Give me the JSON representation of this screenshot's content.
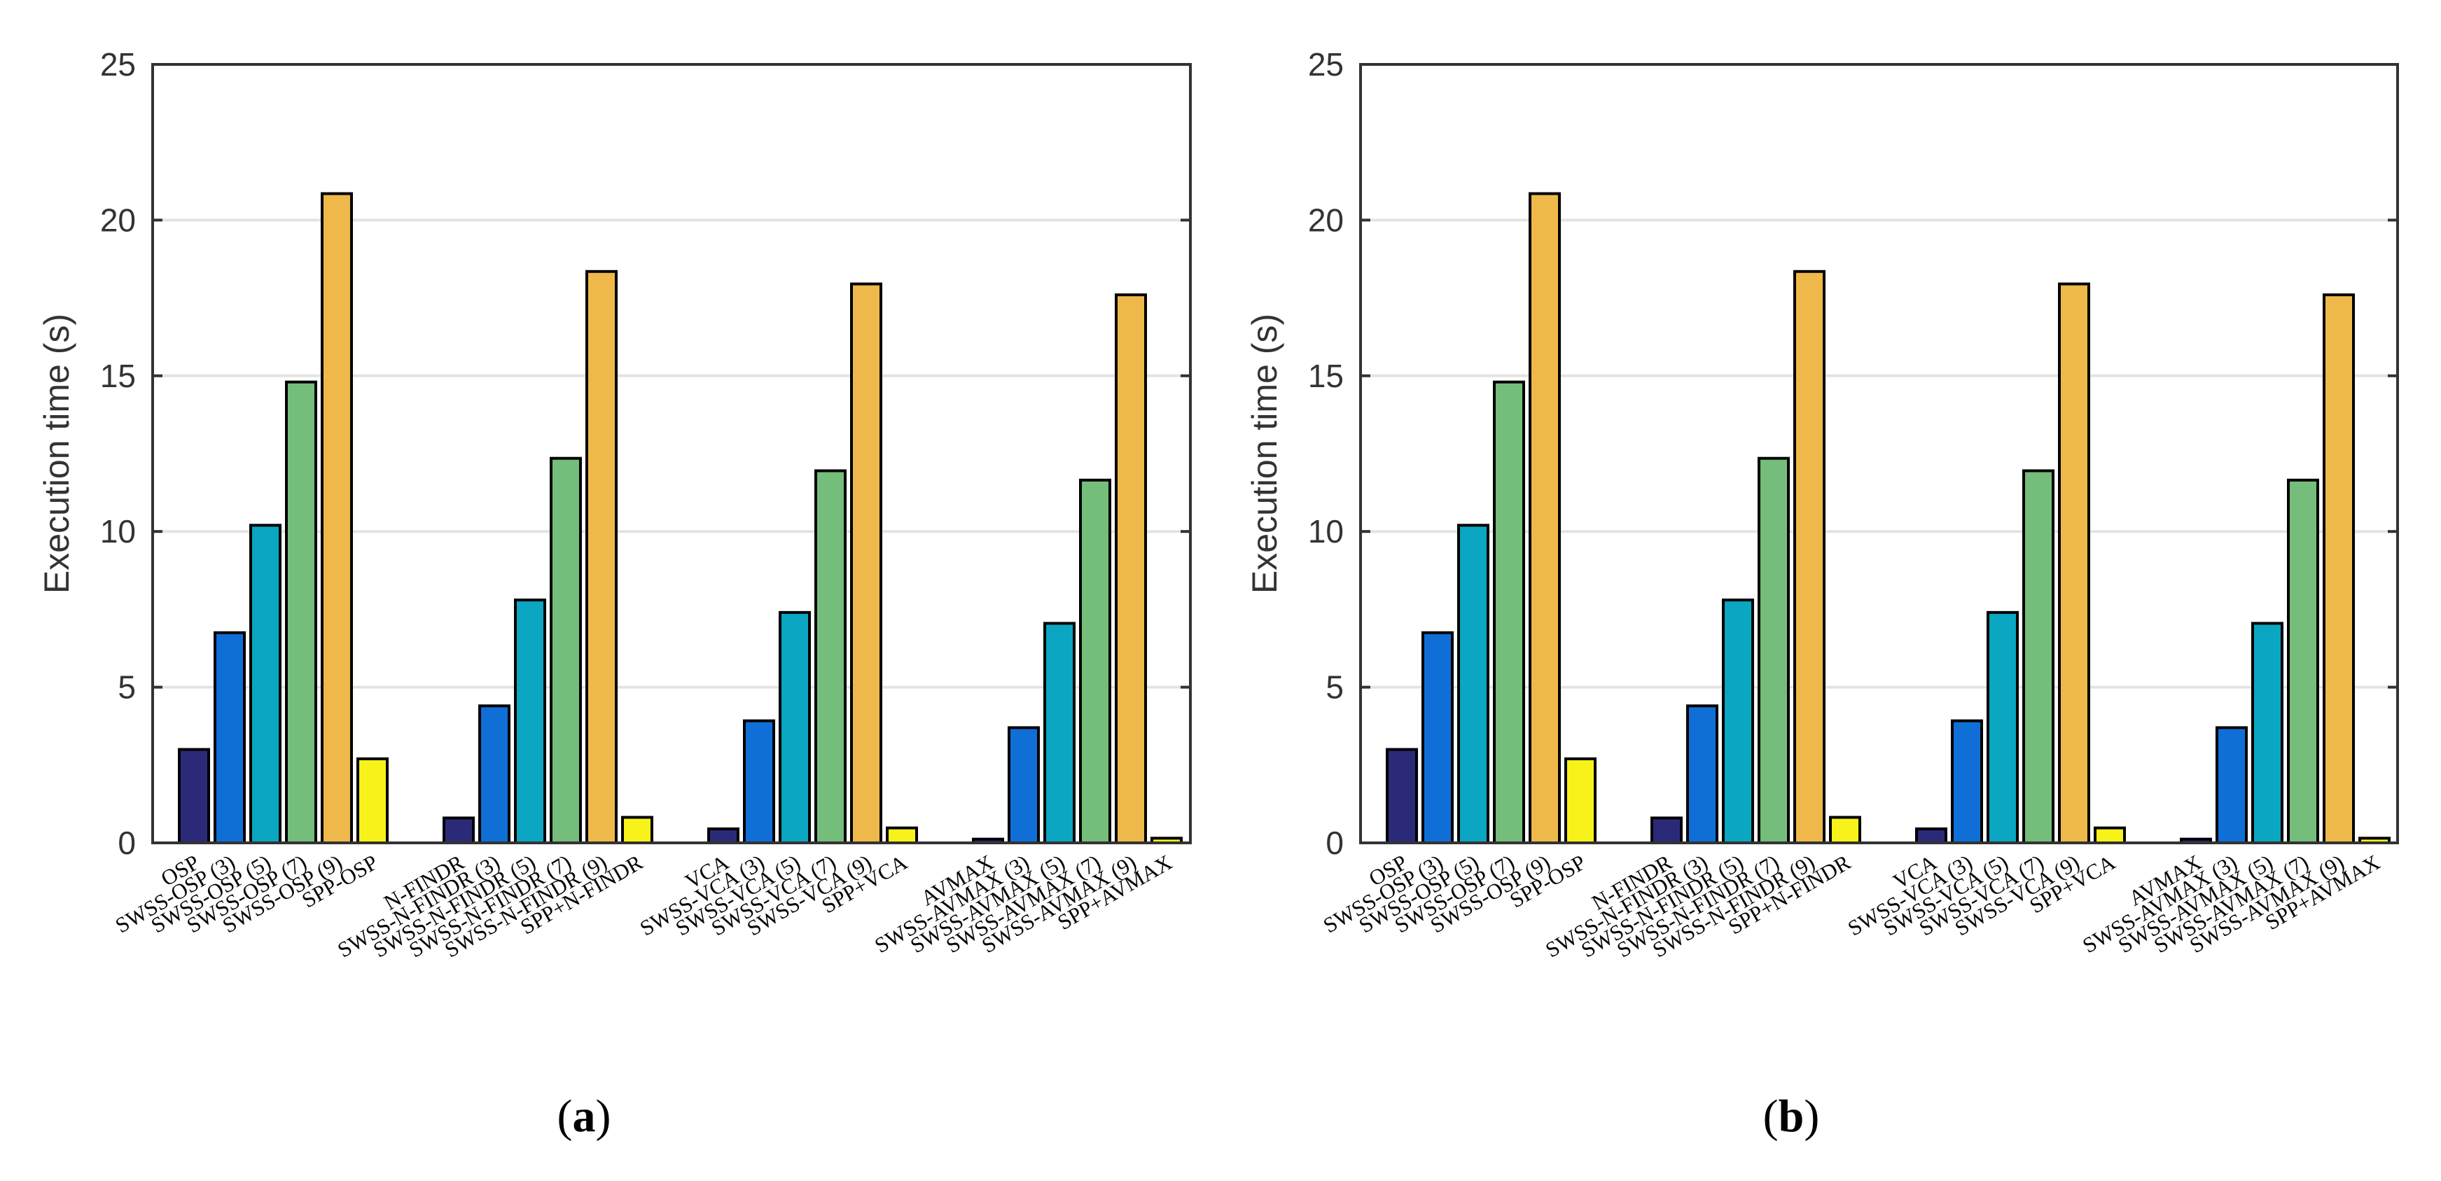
{
  "chart_data": [
    {
      "id": "a",
      "caption": "a",
      "type": "bar",
      "ylabel": "Execution time (s)",
      "xlabel": "",
      "ylim": [
        0,
        25
      ],
      "yticks": [
        0,
        5,
        10,
        15,
        20,
        25
      ],
      "grid": true,
      "categories": [
        "OSP",
        "SWSS-OSP (3)",
        "SWSS-OSP (5)",
        "SWSS-OSP (7)",
        "SWSS-OSP (9)",
        "SPP-OSP",
        "N-FINDR",
        "SWSS-N-FINDR (3)",
        "SWSS-N-FINDR (5)",
        "SWSS-N-FINDR (7)",
        "SWSS-N-FINDR (9)",
        "SPP+N-FINDR",
        "VCA",
        "SWSS-VCA (3)",
        "SWSS-VCA (5)",
        "SWSS-VCA (7)",
        "SWSS-VCA (9)",
        "SPP+VCA",
        "AVMAX",
        "SWSS-AVMAX (3)",
        "SWSS-AVMAX (5)",
        "SWSS-AVMAX (7)",
        "SWSS-AVMAX (9)",
        "SPP+AVMAX"
      ],
      "values": [
        3.0,
        6.75,
        10.2,
        14.8,
        20.85,
        2.7,
        0.8,
        4.4,
        7.8,
        12.35,
        18.35,
        0.82,
        0.45,
        3.92,
        7.4,
        11.95,
        17.95,
        0.48,
        0.12,
        3.7,
        7.05,
        11.65,
        17.6,
        0.15
      ],
      "bar_colors": [
        "#2b2a78",
        "#0f6fd6",
        "#0aa6c2",
        "#75bd7a",
        "#efb84a",
        "#f7f21a",
        "#2b2a78",
        "#0f6fd6",
        "#0aa6c2",
        "#75bd7a",
        "#efb84a",
        "#f7f21a",
        "#2b2a78",
        "#0f6fd6",
        "#0aa6c2",
        "#75bd7a",
        "#efb84a",
        "#f7f21a",
        "#2b2a78",
        "#0f6fd6",
        "#0aa6c2",
        "#75bd7a",
        "#efb84a",
        "#f7f21a"
      ]
    },
    {
      "id": "b",
      "caption": "b",
      "type": "bar",
      "ylabel": "Execution time (s)",
      "xlabel": "",
      "ylim": [
        0,
        25
      ],
      "yticks": [
        0,
        5,
        10,
        15,
        20,
        25
      ],
      "grid": true,
      "categories": [
        "OSP",
        "SWSS-OSP (3)",
        "SWSS-OSP (5)",
        "SWSS-OSP (7)",
        "SWSS-OSP (9)",
        "SPP-OSP",
        "N-FINDR",
        "SWSS-N-FINDR (3)",
        "SWSS-N-FINDR (5)",
        "SWSS-N-FINDR (7)",
        "SWSS-N-FINDR (9)",
        "SPP+N-FINDR",
        "VCA",
        "SWSS-VCA (3)",
        "SWSS-VCA (5)",
        "SWSS-VCA (7)",
        "SWSS-VCA (9)",
        "SPP+VCA",
        "AVMAX",
        "SWSS-AVMAX (3)",
        "SWSS-AVMAX (5)",
        "SWSS-AVMAX (7)",
        "SWSS-AVMAX (9)",
        "SPP+AVMAX"
      ],
      "values": [
        3.0,
        6.75,
        10.2,
        14.8,
        20.85,
        2.7,
        0.8,
        4.4,
        7.8,
        12.35,
        18.35,
        0.82,
        0.45,
        3.92,
        7.4,
        11.95,
        17.95,
        0.48,
        0.12,
        3.7,
        7.05,
        11.65,
        17.6,
        0.15
      ],
      "bar_colors": [
        "#2b2a78",
        "#0f6fd6",
        "#0aa6c2",
        "#75bd7a",
        "#efb84a",
        "#f7f21a",
        "#2b2a78",
        "#0f6fd6",
        "#0aa6c2",
        "#75bd7a",
        "#efb84a",
        "#f7f21a",
        "#2b2a78",
        "#0f6fd6",
        "#0aa6c2",
        "#75bd7a",
        "#efb84a",
        "#f7f21a",
        "#2b2a78",
        "#0f6fd6",
        "#0aa6c2",
        "#75bd7a",
        "#efb84a",
        "#f7f21a"
      ]
    }
  ]
}
